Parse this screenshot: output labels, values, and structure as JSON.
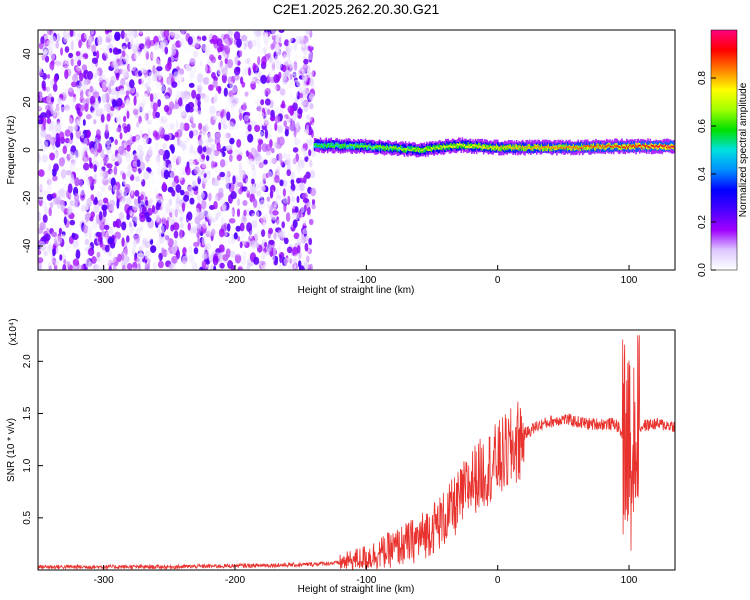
{
  "title": "C2E1.2025.262.20.30.G21",
  "chart_data": [
    {
      "type": "heatmap",
      "xlabel": "Height of straight line (km)",
      "ylabel": "Frequency (Hz)",
      "xlim": [
        -350,
        135
      ],
      "ylim": [
        -50,
        50
      ],
      "xticks": [
        -300,
        -200,
        -100,
        0,
        100
      ],
      "yticks": [
        -40,
        -20,
        0,
        20,
        40
      ],
      "colorbar": {
        "label": "Normalized spectral amplitude",
        "range": [
          0,
          1
        ],
        "ticks": [
          "0.0",
          "0.2",
          "0.4",
          "0.6",
          "0.8"
        ],
        "colors": [
          "#ffffff",
          "#dcc8ff",
          "#a000ff",
          "#4a00ff",
          "#0000ff",
          "#0090ff",
          "#00e0e0",
          "#00e000",
          "#a0ff00",
          "#ffff00",
          "#ff8000",
          "#ff0000",
          "#ff0080"
        ]
      },
      "regions": [
        {
          "x": [
            -350,
            -140
          ],
          "freq": [
            -50,
            50
          ],
          "amplitude": [
            0.0,
            0.25
          ]
        },
        {
          "x": [
            -140,
            135
          ],
          "freq": [
            -5,
            5
          ],
          "amplitude": [
            0.1,
            0.95
          ]
        }
      ],
      "line_center": [
        {
          "x": -140,
          "freq": 2.0
        },
        {
          "x": -100,
          "freq": 1.5
        },
        {
          "x": -60,
          "freq": 0.0
        },
        {
          "x": -30,
          "freq": 2.0
        },
        {
          "x": 0,
          "freq": 1.0
        },
        {
          "x": 50,
          "freq": 1.0
        },
        {
          "x": 90,
          "freq": 1.5
        },
        {
          "x": 135,
          "freq": 1.5
        }
      ]
    },
    {
      "type": "line",
      "xlabel": "Height of straight line (km)",
      "ylabel": "SNR (10 * v/v)",
      "y_multiplier": "(x10⁴)",
      "xlim": [
        -350,
        135
      ],
      "ylim": [
        0,
        2.3
      ],
      "xticks": [
        -300,
        -200,
        -100,
        0,
        100
      ],
      "yticks": [
        0.5,
        1.0,
        1.5,
        2.0
      ],
      "ytick_labels": [
        "0.5",
        "1.0",
        "1.5",
        "2.0"
      ],
      "color": "#e8322e",
      "x": [
        -350,
        -300,
        -250,
        -200,
        -150,
        -120,
        -100,
        -80,
        -60,
        -50,
        -40,
        -30,
        -20,
        -10,
        0,
        10,
        20,
        30,
        40,
        50,
        60,
        70,
        80,
        90,
        95,
        100,
        105,
        110,
        120,
        135
      ],
      "y": [
        0.03,
        0.03,
        0.03,
        0.04,
        0.05,
        0.07,
        0.12,
        0.2,
        0.3,
        0.4,
        0.5,
        0.65,
        0.85,
        0.95,
        1.05,
        1.15,
        1.3,
        1.38,
        1.42,
        1.45,
        1.42,
        1.4,
        1.4,
        1.4,
        1.3,
        1.1,
        1.3,
        1.38,
        1.4,
        1.38
      ]
    }
  ]
}
